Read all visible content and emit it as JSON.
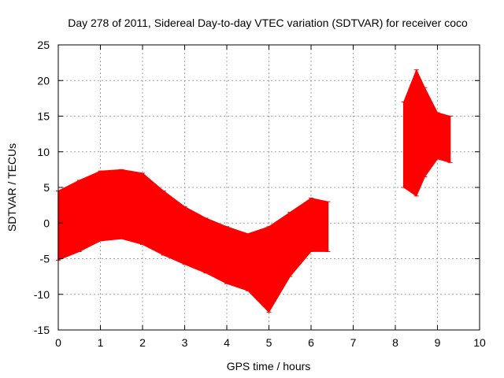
{
  "chart_data": {
    "type": "scatter",
    "title": "Day 278 of 2011, Sidereal Day-to-day VTEC variation (SDTVAR) for receiver coco",
    "xlabel": "GPS time / hours",
    "ylabel": "SDTVAR / TECUs",
    "xlim": [
      0,
      10
    ],
    "ylim": [
      -15,
      25
    ],
    "x_ticks": [
      "0",
      "1",
      "2",
      "3",
      "4",
      "5",
      "6",
      "7",
      "8",
      "9",
      "10"
    ],
    "y_ticks": [
      "-15",
      "-10",
      "-5",
      "0",
      "5",
      "10",
      "15",
      "20",
      "25"
    ],
    "grid": true,
    "series": [
      {
        "name": "SDTVAR",
        "color": "#ff0000",
        "style": "errorbars",
        "envelope": [
          {
            "x": 0.0,
            "low": -5.2,
            "high": 4.5
          },
          {
            "x": 0.5,
            "low": -4.0,
            "high": 6.0
          },
          {
            "x": 1.0,
            "low": -2.5,
            "high": 7.3
          },
          {
            "x": 1.5,
            "low": -2.2,
            "high": 7.5
          },
          {
            "x": 2.0,
            "low": -3.0,
            "high": 7.0
          },
          {
            "x": 2.5,
            "low": -4.5,
            "high": 4.5
          },
          {
            "x": 3.0,
            "low": -5.8,
            "high": 2.3
          },
          {
            "x": 3.5,
            "low": -7.0,
            "high": 0.7
          },
          {
            "x": 4.0,
            "low": -8.5,
            "high": -0.5
          },
          {
            "x": 4.5,
            "low": -9.5,
            "high": -1.5
          },
          {
            "x": 5.0,
            "low": -12.5,
            "high": -0.5
          },
          {
            "x": 5.5,
            "low": -7.5,
            "high": 1.5
          },
          {
            "x": 6.0,
            "low": -4.0,
            "high": 3.5
          },
          {
            "x": 6.4,
            "low": -4.0,
            "high": 3.0
          },
          {
            "x": 8.2,
            "low": 5.0,
            "high": 17.0
          },
          {
            "x": 8.5,
            "low": 3.8,
            "high": 21.5
          },
          {
            "x": 8.7,
            "low": 6.5,
            "high": 19.0
          },
          {
            "x": 9.0,
            "low": 9.0,
            "high": 15.5
          },
          {
            "x": 9.3,
            "low": 8.5,
            "high": 15.0
          }
        ]
      }
    ]
  }
}
